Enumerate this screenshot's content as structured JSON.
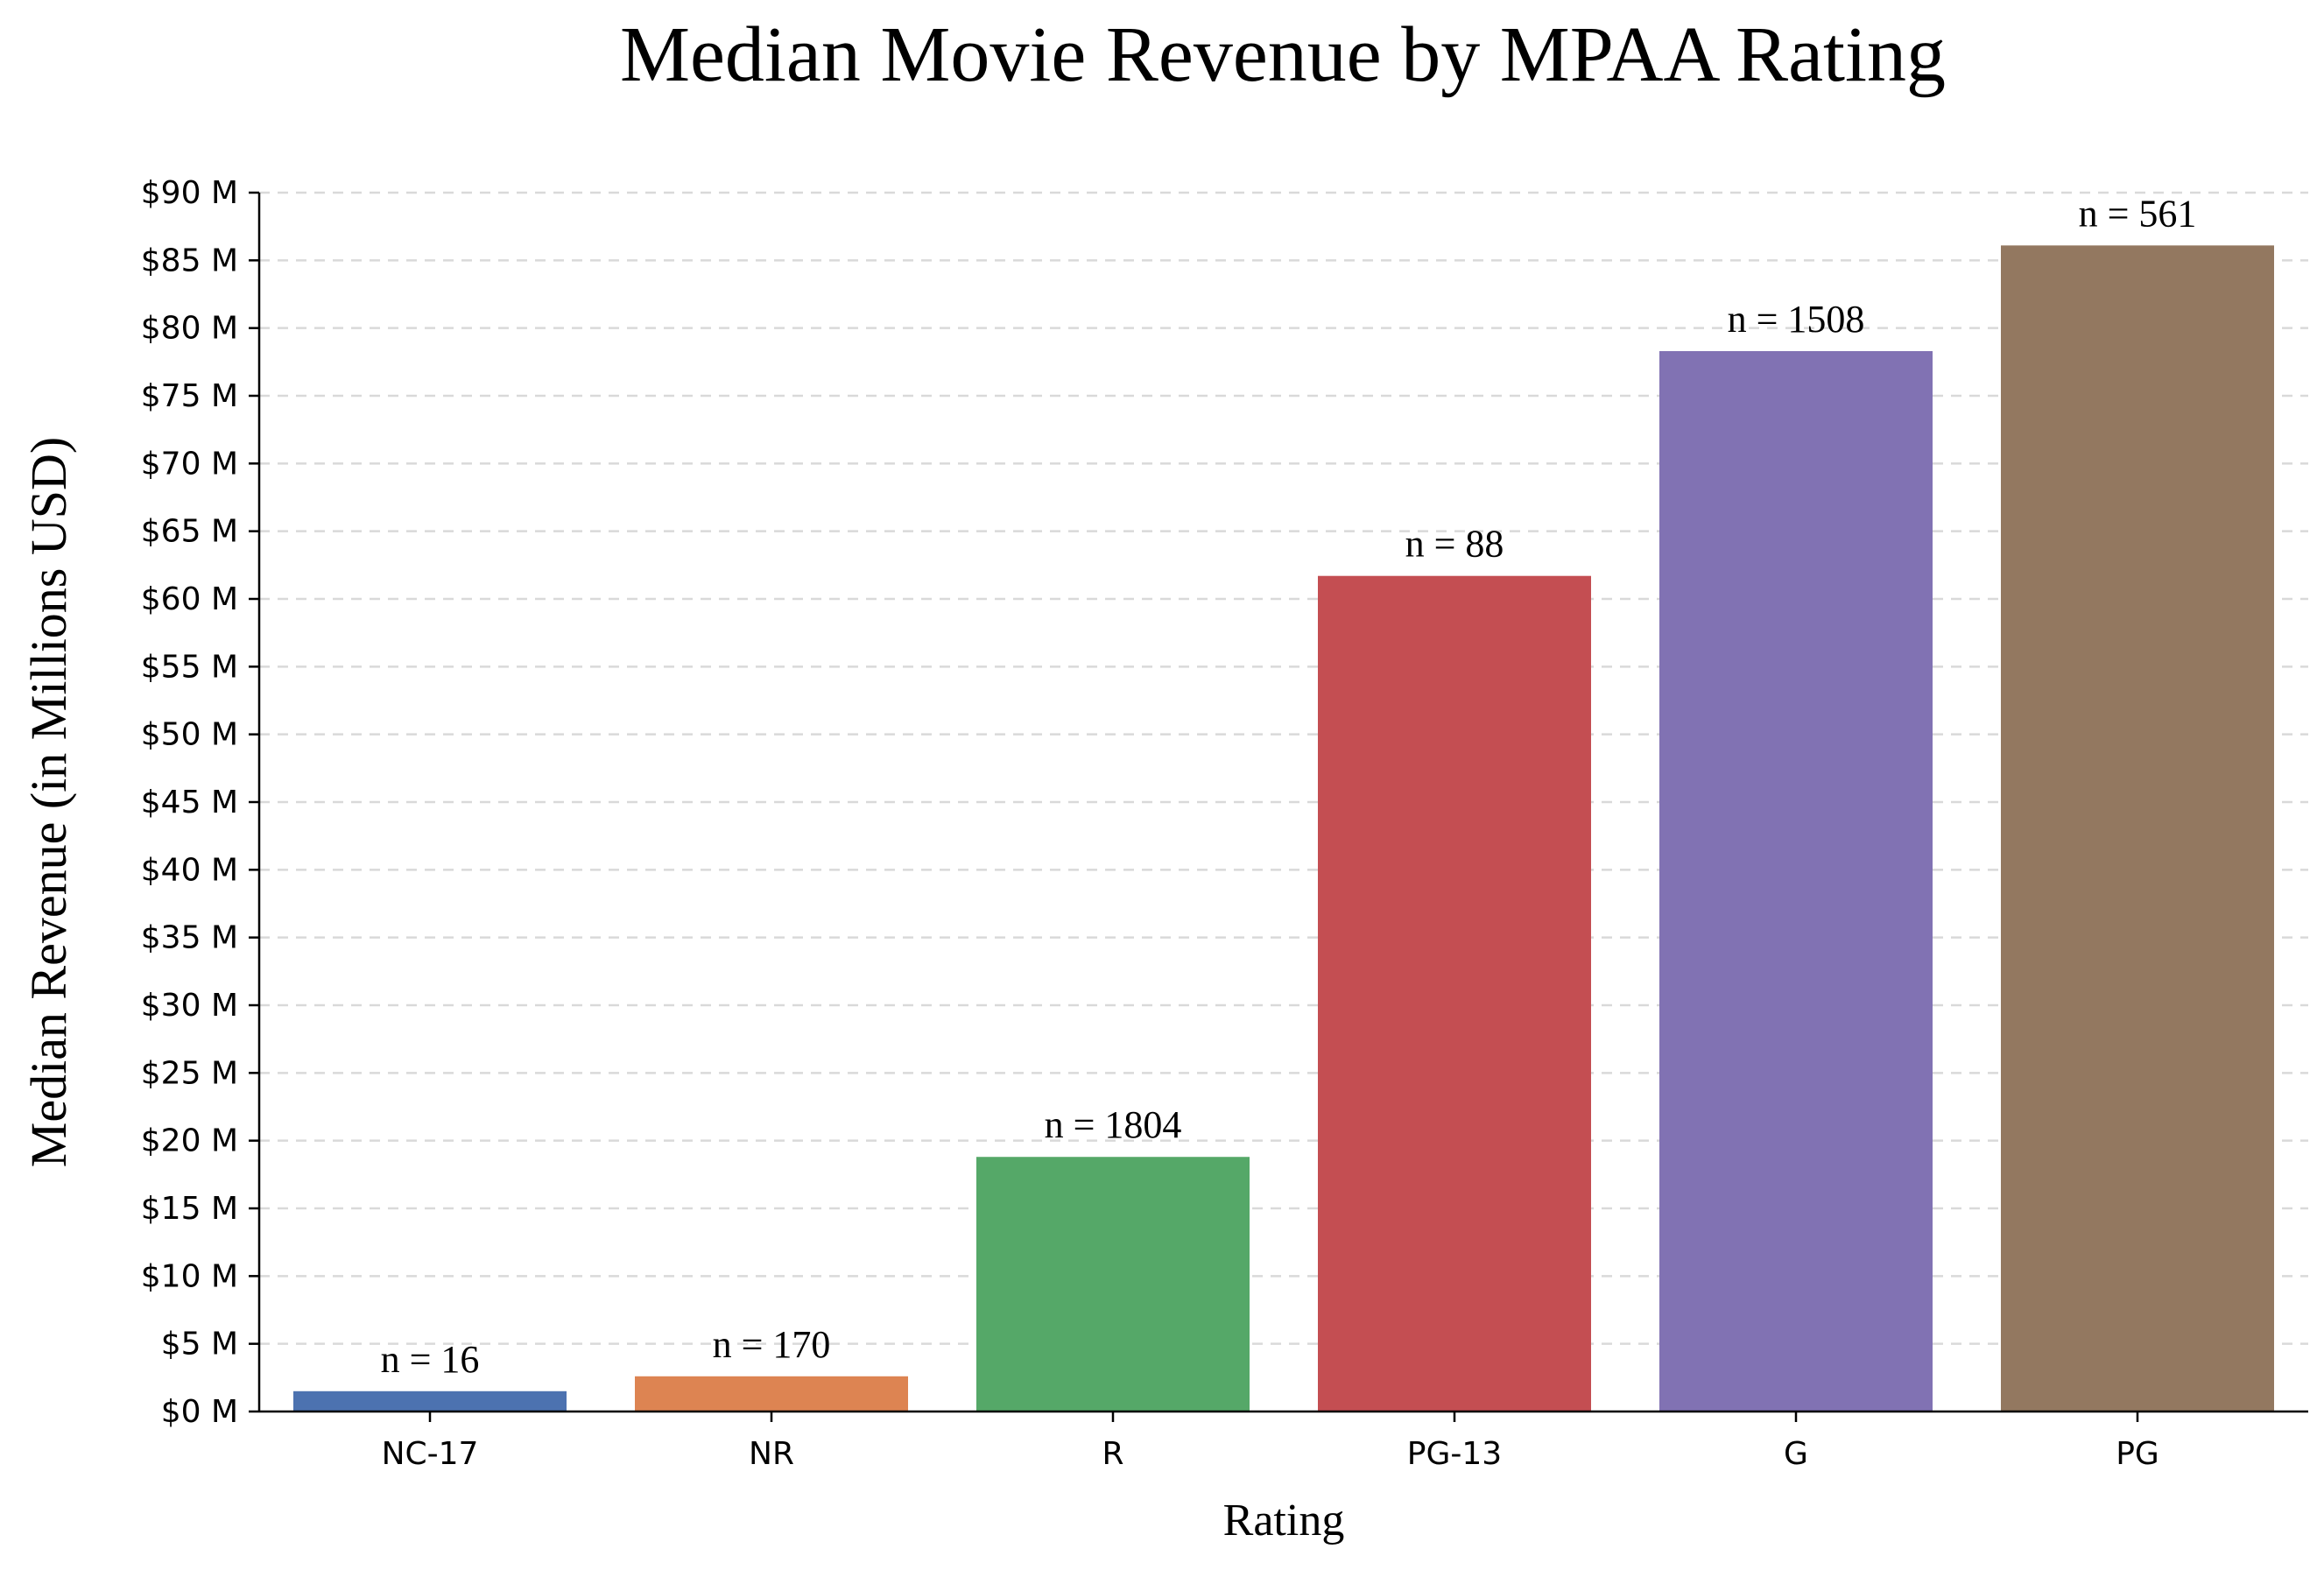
{
  "chart_data": {
    "type": "bar",
    "title": "Median Movie Revenue by MPAA Rating",
    "xlabel": "Rating",
    "ylabel": "Median Revenue (in Millions USD)",
    "ylim": [
      0,
      90
    ],
    "yticks": [
      0,
      5,
      10,
      15,
      20,
      25,
      30,
      35,
      40,
      45,
      50,
      55,
      60,
      65,
      70,
      75,
      80,
      85,
      90
    ],
    "ytick_prefix": "$",
    "ytick_suffix": " M",
    "grid": "horizontal-dashed",
    "categories": [
      "NC-17",
      "NR",
      "R",
      "PG-13",
      "G",
      "PG"
    ],
    "values": [
      1.5,
      2.6,
      18.8,
      61.7,
      78.3,
      86.1
    ],
    "annotations": [
      "n = 16",
      "n = 170",
      "n = 1804",
      "n = 88",
      "n = 1508",
      "n = 561"
    ],
    "colors": [
      "#4c72b0",
      "#dd8452",
      "#55a868",
      "#c44e52",
      "#8172b3",
      "#937860"
    ]
  }
}
